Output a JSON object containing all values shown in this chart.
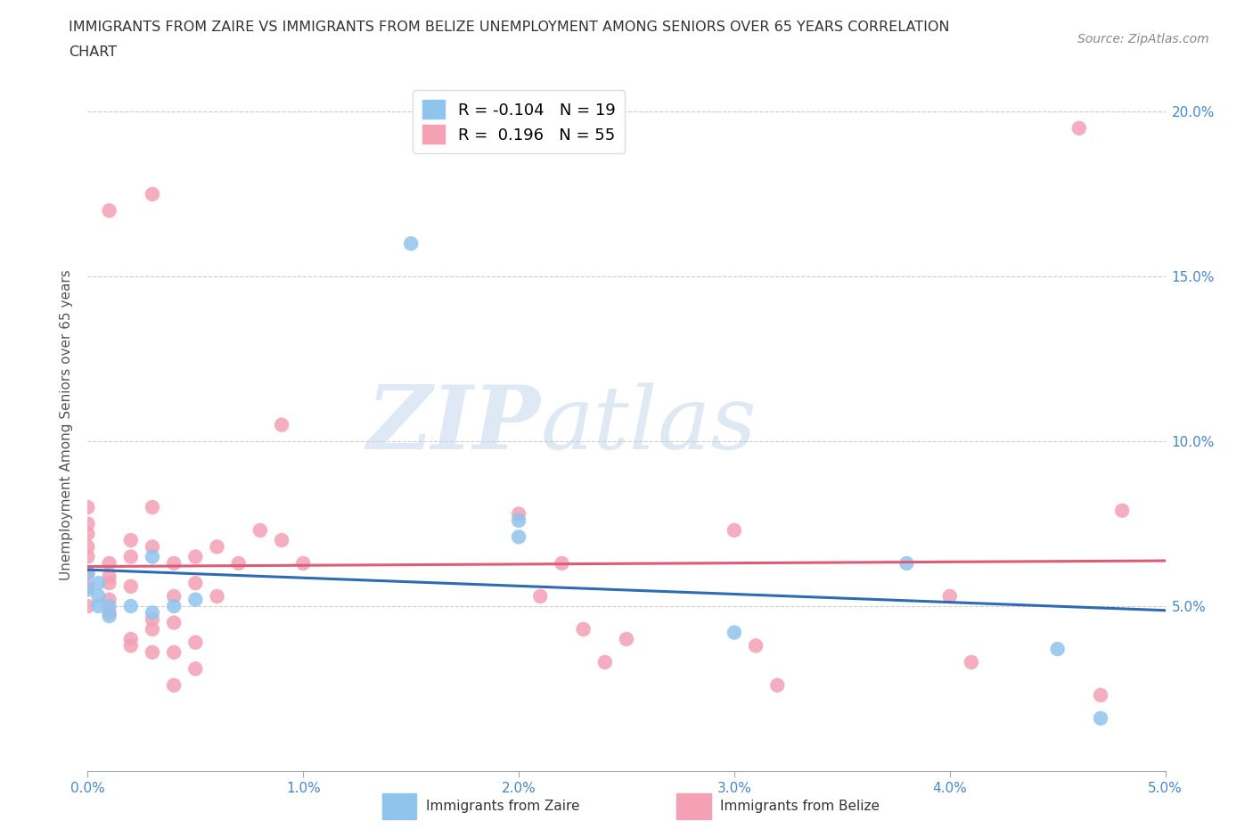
{
  "title_line1": "IMMIGRANTS FROM ZAIRE VS IMMIGRANTS FROM BELIZE UNEMPLOYMENT AMONG SENIORS OVER 65 YEARS CORRELATION",
  "title_line2": "CHART",
  "source_text": "Source: ZipAtlas.com",
  "ylabel": "Unemployment Among Seniors over 65 years",
  "watermark_zip": "ZIP",
  "watermark_atlas": "atlas",
  "r_zaire": -0.104,
  "n_zaire": 19,
  "r_belize": 0.196,
  "n_belize": 55,
  "xlim": [
    0.0,
    0.05
  ],
  "ylim": [
    0.0,
    0.21
  ],
  "xticks": [
    0.0,
    0.01,
    0.02,
    0.03,
    0.04,
    0.05
  ],
  "yticks": [
    0.05,
    0.1,
    0.15,
    0.2
  ],
  "color_zaire": "#8FC4ED",
  "color_belize": "#F4A0B5",
  "color_zaire_line": "#2E6BB5",
  "color_belize_line": "#E05A78",
  "background_color": "#ffffff",
  "grid_color": "#cccccc",
  "zaire_points": [
    [
      0.0005,
      0.057
    ],
    [
      0.0005,
      0.05
    ],
    [
      0.0005,
      0.053
    ],
    [
      0.001,
      0.047
    ],
    [
      0.001,
      0.05
    ],
    [
      0.002,
      0.05
    ],
    [
      0.003,
      0.048
    ],
    [
      0.003,
      0.065
    ],
    [
      0.004,
      0.05
    ],
    [
      0.005,
      0.052
    ],
    [
      0.015,
      0.16
    ],
    [
      0.02,
      0.076
    ],
    [
      0.02,
      0.071
    ],
    [
      0.03,
      0.042
    ],
    [
      0.038,
      0.063
    ],
    [
      0.045,
      0.037
    ],
    [
      0.047,
      0.016
    ],
    [
      0.0,
      0.06
    ],
    [
      0.0,
      0.055
    ]
  ],
  "belize_points": [
    [
      0.0,
      0.056
    ],
    [
      0.0,
      0.06
    ],
    [
      0.0,
      0.065
    ],
    [
      0.0,
      0.068
    ],
    [
      0.0,
      0.072
    ],
    [
      0.0,
      0.075
    ],
    [
      0.0,
      0.05
    ],
    [
      0.0,
      0.08
    ],
    [
      0.001,
      0.048
    ],
    [
      0.001,
      0.052
    ],
    [
      0.001,
      0.057
    ],
    [
      0.001,
      0.063
    ],
    [
      0.001,
      0.059
    ],
    [
      0.002,
      0.04
    ],
    [
      0.002,
      0.038
    ],
    [
      0.002,
      0.056
    ],
    [
      0.002,
      0.065
    ],
    [
      0.002,
      0.07
    ],
    [
      0.003,
      0.046
    ],
    [
      0.003,
      0.068
    ],
    [
      0.003,
      0.08
    ],
    [
      0.003,
      0.036
    ],
    [
      0.003,
      0.043
    ],
    [
      0.003,
      0.175
    ],
    [
      0.004,
      0.053
    ],
    [
      0.004,
      0.063
    ],
    [
      0.004,
      0.045
    ],
    [
      0.004,
      0.036
    ],
    [
      0.004,
      0.026
    ],
    [
      0.005,
      0.065
    ],
    [
      0.005,
      0.057
    ],
    [
      0.005,
      0.039
    ],
    [
      0.005,
      0.031
    ],
    [
      0.006,
      0.068
    ],
    [
      0.006,
      0.053
    ],
    [
      0.007,
      0.063
    ],
    [
      0.008,
      0.073
    ],
    [
      0.009,
      0.07
    ],
    [
      0.009,
      0.105
    ],
    [
      0.01,
      0.063
    ],
    [
      0.02,
      0.078
    ],
    [
      0.021,
      0.053
    ],
    [
      0.022,
      0.063
    ],
    [
      0.023,
      0.043
    ],
    [
      0.024,
      0.033
    ],
    [
      0.025,
      0.04
    ],
    [
      0.03,
      0.073
    ],
    [
      0.031,
      0.038
    ],
    [
      0.032,
      0.026
    ],
    [
      0.04,
      0.053
    ],
    [
      0.041,
      0.033
    ],
    [
      0.046,
      0.195
    ],
    [
      0.047,
      0.023
    ],
    [
      0.048,
      0.079
    ],
    [
      0.001,
      0.17
    ]
  ]
}
